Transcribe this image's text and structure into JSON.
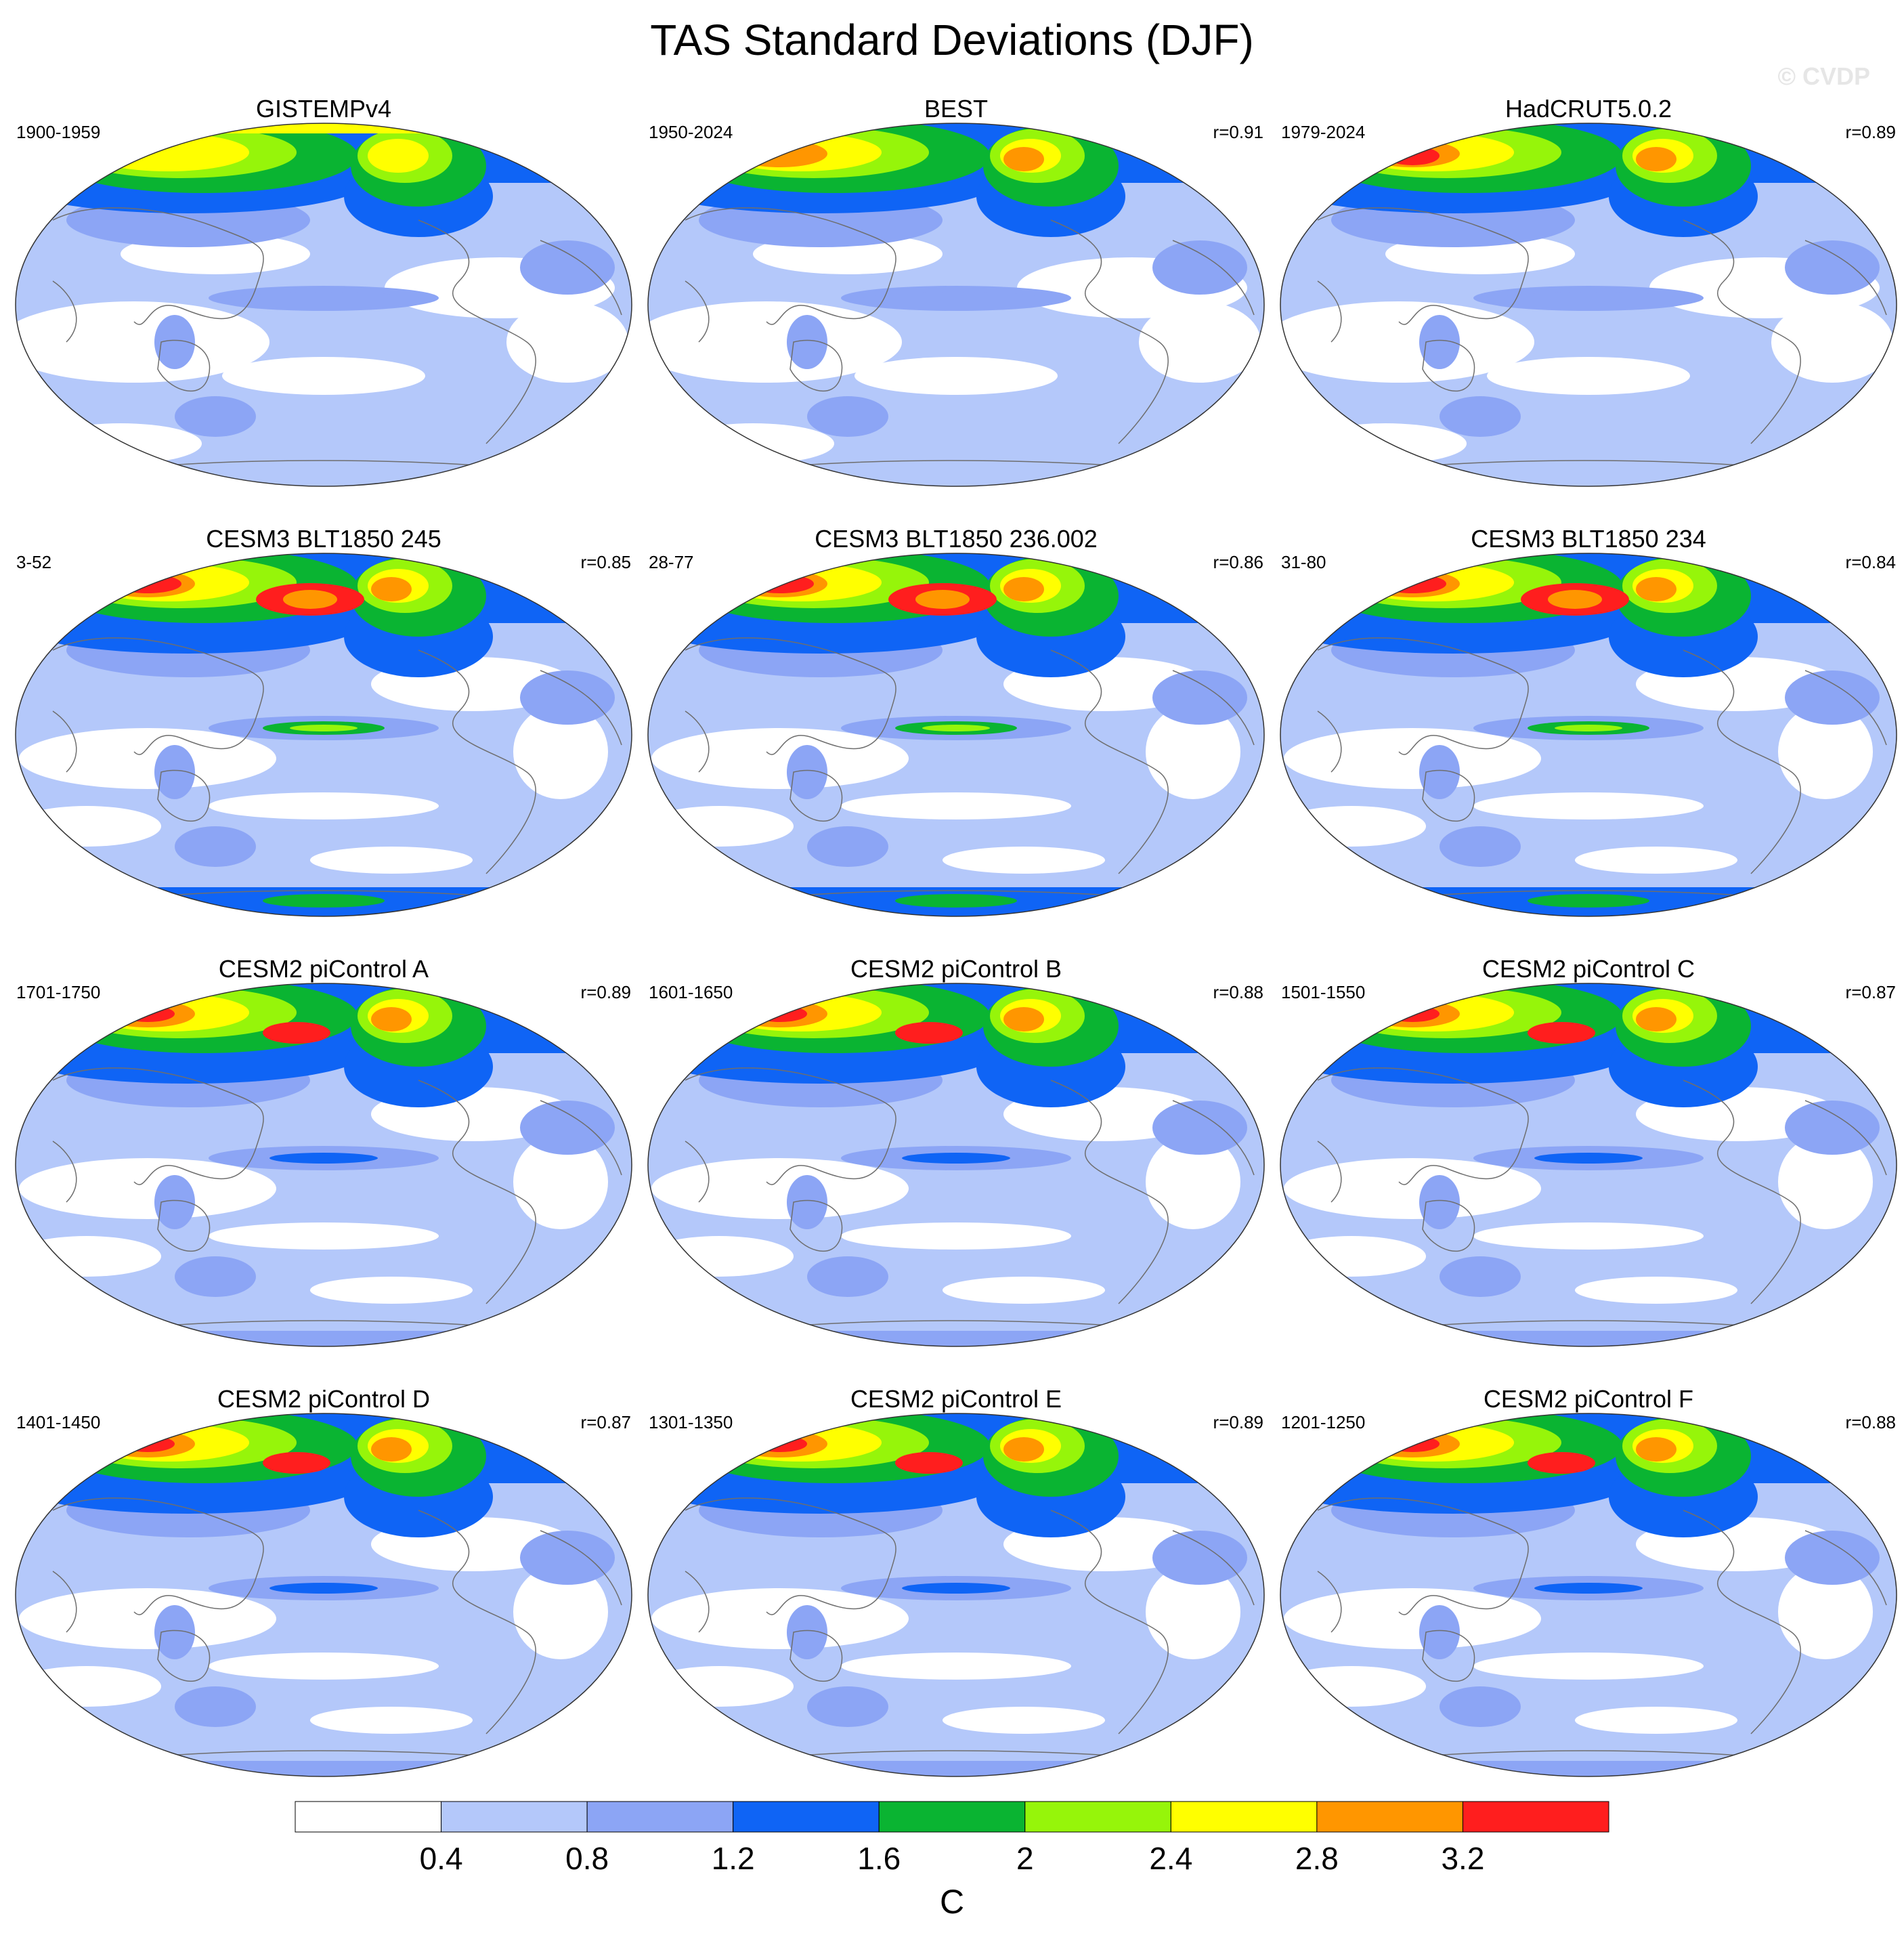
{
  "title": "TAS Standard Deviations (DJF)",
  "watermark": "© CVDP",
  "panels": [
    {
      "title": "GISTEMPv4",
      "period": "1900-1959",
      "r": "",
      "style": "obs_gistemp"
    },
    {
      "title": "BEST",
      "period": "1950-2024",
      "r": "r=0.91",
      "style": "obs_best"
    },
    {
      "title": "HadCRUT5.0.2",
      "period": "1979-2024",
      "r": "r=0.89",
      "style": "obs_hadcrut"
    },
    {
      "title": "CESM3 BLT1850 245",
      "period": "3-52",
      "r": "r=0.85",
      "style": "cesm3"
    },
    {
      "title": "CESM3 BLT1850 236.002",
      "period": "28-77",
      "r": "r=0.86",
      "style": "cesm3"
    },
    {
      "title": "CESM3 BLT1850 234",
      "period": "31-80",
      "r": "r=0.84",
      "style": "cesm3"
    },
    {
      "title": "CESM2 piControl A",
      "period": "1701-1750",
      "r": "r=0.89",
      "style": "cesm2"
    },
    {
      "title": "CESM2 piControl B",
      "period": "1601-1650",
      "r": "r=0.88",
      "style": "cesm2"
    },
    {
      "title": "CESM2 piControl C",
      "period": "1501-1550",
      "r": "r=0.87",
      "style": "cesm2"
    },
    {
      "title": "CESM2 piControl D",
      "period": "1401-1450",
      "r": "r=0.87",
      "style": "cesm2"
    },
    {
      "title": "CESM2 piControl E",
      "period": "1301-1350",
      "r": "r=0.89",
      "style": "cesm2"
    },
    {
      "title": "CESM2 piControl F",
      "period": "1201-1250",
      "r": "r=0.88",
      "style": "cesm2"
    }
  ],
  "colorbar": {
    "unit": "C",
    "levels": [
      "0.4",
      "0.8",
      "1.2",
      "1.6",
      "2",
      "2.4",
      "2.8",
      "3.2"
    ],
    "colors": [
      "#ffffff",
      "#b4c8fa",
      "#8ca5f5",
      "#0f64f5",
      "#0ab432",
      "#96f50a",
      "#ffff00",
      "#ff9600",
      "#ff1e1e"
    ]
  }
}
